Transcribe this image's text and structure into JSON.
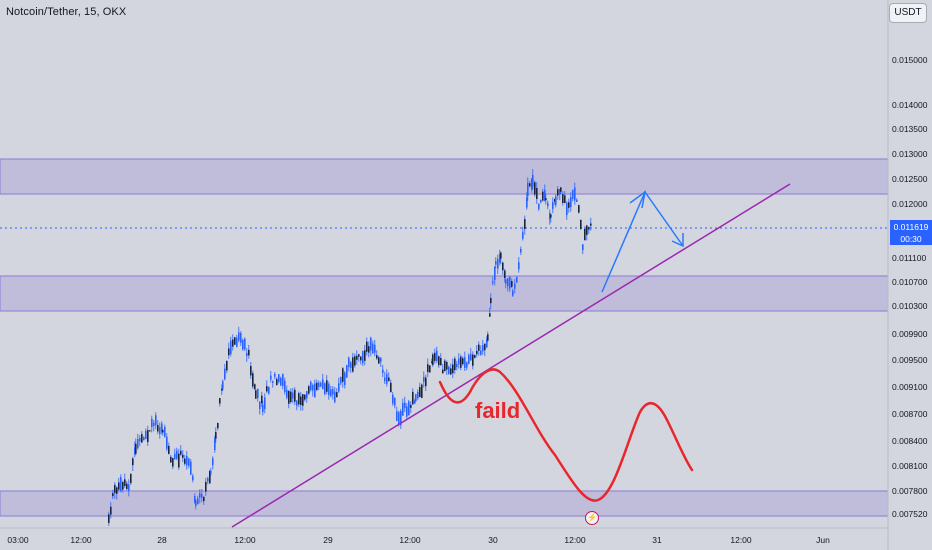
{
  "header": {
    "symbol": "Notcoin/Tether, 15, OKX",
    "currency": "USDT"
  },
  "price_axis": {
    "labels": [
      "0.015000",
      "0.014000",
      "0.013500",
      "0.013000",
      "0.012500",
      "0.012000",
      "0.011100",
      "0.010700",
      "0.010300",
      "0.009900",
      "0.009500",
      "0.009100",
      "0.008700",
      "0.008400",
      "0.008100",
      "0.007800",
      "0.007520"
    ]
  },
  "time_axis": {
    "labels": [
      "03:00",
      "12:00",
      "28",
      "12:00",
      "29",
      "12:00",
      "30",
      "12:00",
      "31",
      "12:00",
      "Jun"
    ]
  },
  "current_price": {
    "value": "0.011619",
    "countdown": "00:30"
  },
  "annotation": {
    "text": "faild"
  },
  "colors": {
    "zone": "#9b8fd6",
    "trendline": "#9c27b0",
    "blue_arrow": "#2962ff",
    "red_path": "#e8272d",
    "candles": "#2962ff"
  },
  "icons": [
    "lightning-icon"
  ],
  "chart_data": {
    "type": "candlestick",
    "title": "Notcoin/Tether, 15, OKX",
    "current_price": 0.011619,
    "zones": [
      [
        0.0122,
        0.0129
      ],
      [
        0.0103,
        0.0108
      ],
      [
        0.0075,
        0.0078
      ]
    ],
    "ylim": [
      0.0074,
      0.0155
    ]
  }
}
